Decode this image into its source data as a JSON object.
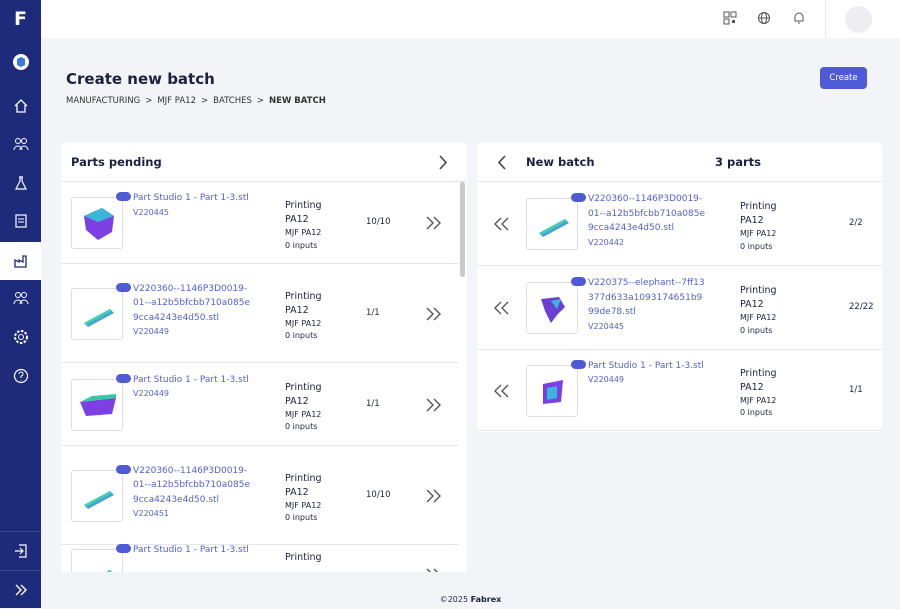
{
  "brand": {
    "letter": "F"
  },
  "header": {
    "title": "Create new batch",
    "action": "Create",
    "breadcrumbs": {
      "separator": ">",
      "items": [
        "MANUFACTURING",
        "MJF PA12",
        "BATCHES",
        "NEW BATCH"
      ]
    }
  },
  "pending": {
    "title": "Parts pending",
    "items": [
      {
        "name": "Part Studio 1 - Part 1-3.stl",
        "id": "V220445",
        "status": "Printing PA12",
        "process": "MJF PA12",
        "inputs": "0 inputs",
        "qty": "10/10"
      },
      {
        "name": "V220360--1146P3D0019-01--a12b5bfcbb710a085e9cca4243e4d50.stl",
        "id": "V220449",
        "status": "Printing PA12",
        "process": "MJF PA12",
        "inputs": "0 inputs",
        "qty": "1/1"
      },
      {
        "name": "Part Studio 1 - Part 1-3.stl",
        "id": "V220449",
        "status": "Printing PA12",
        "process": "MJF PA12",
        "inputs": "0 inputs",
        "qty": "1/1"
      },
      {
        "name": "V220360--1146P3D0019-01--a12b5bfcbb710a085e9cca4243e4d50.stl",
        "id": "V220451",
        "status": "Printing PA12",
        "process": "MJF PA12",
        "inputs": "0 inputs",
        "qty": "10/10"
      },
      {
        "name": "Part Studio 1 - Part 1-3.stl",
        "status": "Printing"
      }
    ]
  },
  "batch": {
    "title": "New batch",
    "count": "3 parts",
    "items": [
      {
        "name": "V220360--1146P3D0019-01--a12b5bfcbb710a085e9cca4243e4d50.stl",
        "id": "V220442",
        "status": "Printing PA12",
        "process": "MJF PA12",
        "inputs": "0 inputs",
        "qty": "2/2"
      },
      {
        "name": "V220375--elephant--7ff13377d633a1093174651b999de78.stl",
        "id": "V220445",
        "status": "Printing PA12",
        "process": "MJF PA12",
        "inputs": "0 inputs",
        "qty": "22/22"
      },
      {
        "name": "Part Studio 1 - Part 1-3.stl",
        "id": "V220449",
        "status": "Printing PA12",
        "process": "MJF PA12",
        "inputs": "0 inputs",
        "qty": "1/1"
      }
    ]
  },
  "footer": {
    "copyright": "©2025",
    "brand": "Fabrex"
  }
}
